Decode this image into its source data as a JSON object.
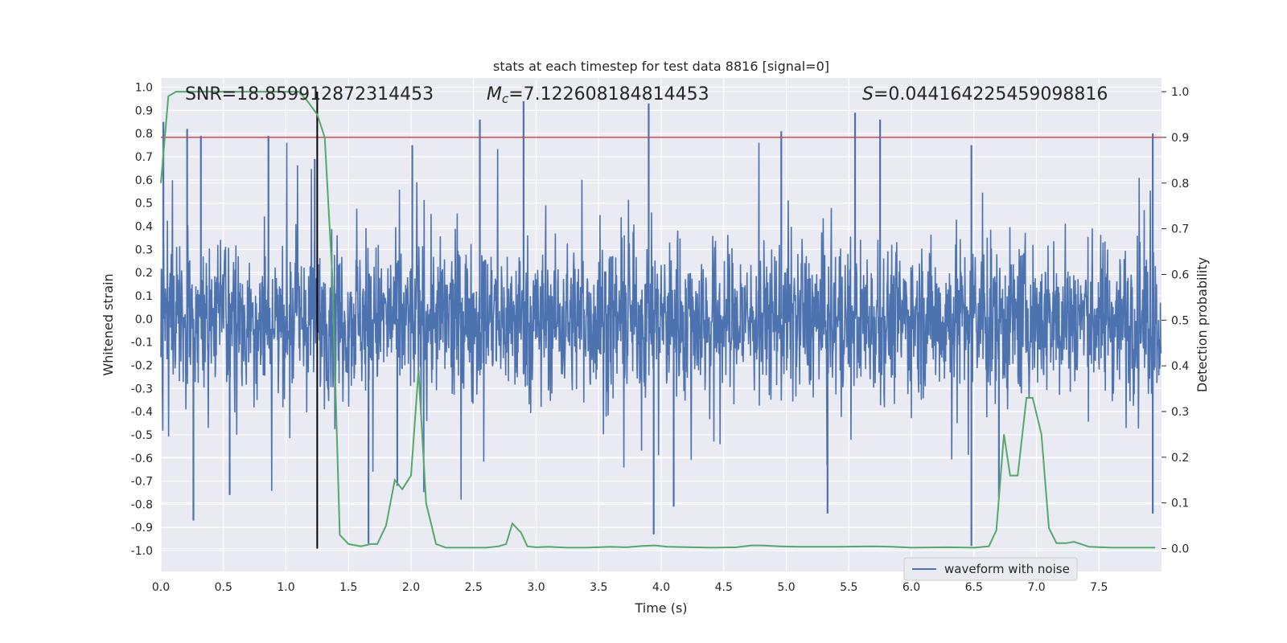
{
  "chart_data": {
    "type": "line",
    "title": "stats at each timestep for test data 8816 [signal=0]",
    "xlabel": "Time (s)",
    "ylabel_left": "Whitened strain",
    "ylabel_right": "Detection probability",
    "xlim": [
      0.0,
      8.0
    ],
    "ylim_left": [
      -1.09,
      1.04
    ],
    "ylim_right": [
      -0.05,
      1.03
    ],
    "x_ticks": [
      "0.0",
      "0.5",
      "1.0",
      "1.5",
      "2.0",
      "2.5",
      "3.0",
      "3.5",
      "4.0",
      "4.5",
      "5.0",
      "5.5",
      "6.0",
      "6.5",
      "7.0",
      "7.5"
    ],
    "y_ticks_left": [
      "1.0",
      "0.9",
      "0.8",
      "0.7",
      "0.6",
      "0.5",
      "0.4",
      "0.3",
      "0.2",
      "0.1",
      "0.0",
      "-0.1",
      "-0.2",
      "-0.3",
      "-0.4",
      "-0.5",
      "-0.6",
      "-0.7",
      "-0.8",
      "-0.9",
      "-1.0"
    ],
    "y_ticks_right": [
      "1.0",
      "0.9",
      "0.8",
      "0.7",
      "0.6",
      "0.5",
      "0.4",
      "0.3",
      "0.2",
      "0.1",
      "0.0"
    ],
    "annotations": {
      "snr": "SNR=18.859912872314453",
      "mc_symbol": "M",
      "mc_sub": "c",
      "mc_value": "=7.122608184814453",
      "s_symbol": "S",
      "s_value": "=0.044164225459098816"
    },
    "threshold": 0.9,
    "marker_time": 1.25,
    "legend": [
      "waveform with noise"
    ],
    "colors": {
      "waveform": "#4c72b0",
      "probability": "#55a868",
      "threshold": "#c44e52",
      "marker": "#000000",
      "background": "#eaeaf2",
      "grid": "#ffffff"
    },
    "waveform_spikes": [
      {
        "t": 0.02,
        "v": 0.85
      },
      {
        "t": 0.21,
        "v": 0.82
      },
      {
        "t": 0.32,
        "v": 0.79
      },
      {
        "t": 0.26,
        "v": -0.87
      },
      {
        "t": 0.55,
        "v": -0.76
      },
      {
        "t": 0.86,
        "v": 0.79
      },
      {
        "t": 1.23,
        "v": 0.69
      },
      {
        "t": 1.66,
        "v": -0.97
      },
      {
        "t": 1.89,
        "v": -0.72
      },
      {
        "t": 2.01,
        "v": 0.75
      },
      {
        "t": 2.55,
        "v": 0.86
      },
      {
        "t": 2.9,
        "v": 0.94
      },
      {
        "t": 3.9,
        "v": 0.93
      },
      {
        "t": 3.94,
        "v": -0.93
      },
      {
        "t": 4.1,
        "v": -0.81
      },
      {
        "t": 4.96,
        "v": 0.81
      },
      {
        "t": 5.33,
        "v": -0.84
      },
      {
        "t": 5.55,
        "v": 0.89
      },
      {
        "t": 5.75,
        "v": 0.86
      },
      {
        "t": 6.48,
        "v": 0.75
      },
      {
        "t": 6.48,
        "v": -0.98
      },
      {
        "t": 6.7,
        "v": -0.77
      },
      {
        "t": 7.93,
        "v": 0.8
      },
      {
        "t": 7.93,
        "v": -0.84
      }
    ],
    "probability_series": {
      "x": [
        0.0,
        0.06,
        0.12,
        0.25,
        0.5,
        0.75,
        1.0,
        1.1,
        1.17,
        1.25,
        1.31,
        1.37,
        1.43,
        1.5,
        1.6,
        1.68,
        1.73,
        1.8,
        1.87,
        1.93,
        2.0,
        2.06,
        2.12,
        2.2,
        2.28,
        2.45,
        2.6,
        2.7,
        2.76,
        2.81,
        2.88,
        2.93,
        3.0,
        3.1,
        3.25,
        3.4,
        3.6,
        3.72,
        3.85,
        3.95,
        4.05,
        4.4,
        4.6,
        4.72,
        4.8,
        4.95,
        5.1,
        5.4,
        5.7,
        5.85,
        6.0,
        6.3,
        6.5,
        6.62,
        6.68,
        6.74,
        6.79,
        6.85,
        6.92,
        6.97,
        7.04,
        7.1,
        7.16,
        7.24,
        7.3,
        7.42,
        7.6,
        7.8,
        7.95
      ],
      "y": [
        0.8,
        0.99,
        1.0,
        1.0,
        1.0,
        1.0,
        1.0,
        1.0,
        0.98,
        0.95,
        0.9,
        0.6,
        0.03,
        0.01,
        0.005,
        0.01,
        0.01,
        0.05,
        0.15,
        0.13,
        0.16,
        0.39,
        0.1,
        0.01,
        0.002,
        0.002,
        0.002,
        0.005,
        0.01,
        0.055,
        0.035,
        0.005,
        0.003,
        0.004,
        0.002,
        0.002,
        0.004,
        0.003,
        0.006,
        0.007,
        0.004,
        0.002,
        0.003,
        0.007,
        0.007,
        0.005,
        0.004,
        0.004,
        0.005,
        0.004,
        0.002,
        0.003,
        0.002,
        0.005,
        0.04,
        0.25,
        0.16,
        0.16,
        0.33,
        0.33,
        0.25,
        0.045,
        0.012,
        0.012,
        0.015,
        0.004,
        0.002,
        0.002,
        0.002
      ]
    }
  }
}
